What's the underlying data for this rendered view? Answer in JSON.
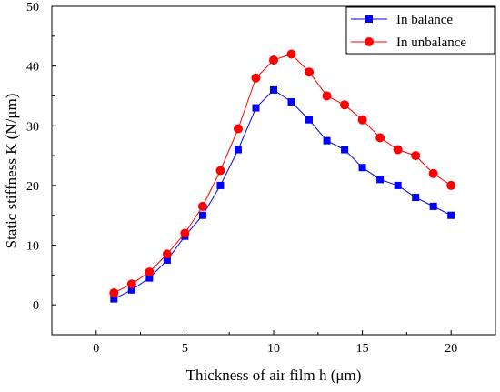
{
  "chart_data": {
    "type": "line",
    "xlabel": "Thickness of air film h (μm)",
    "ylabel": "Static stiffness K (N/μm)",
    "xlim": [
      -2.5,
      22.5
    ],
    "ylim": [
      -5,
      50
    ],
    "xticks": [
      0,
      5,
      10,
      15,
      20
    ],
    "yticks": [
      0,
      10,
      20,
      30,
      40,
      50
    ],
    "grid": false,
    "legend_position": "top-right",
    "x": [
      1,
      2,
      3,
      4,
      5,
      6,
      7,
      8,
      9,
      10,
      11,
      12,
      13,
      14,
      15,
      16,
      17,
      18,
      19,
      20
    ],
    "series": [
      {
        "name": "In balance",
        "color": "#0000ff",
        "marker": "square",
        "values": [
          1,
          2.5,
          4.5,
          7.5,
          11.5,
          15,
          20,
          26,
          33,
          36,
          34,
          31,
          27.5,
          26,
          23,
          21,
          20,
          18,
          16.5,
          15
        ]
      },
      {
        "name": "In unbalance",
        "color": "#ff0000",
        "marker": "circle",
        "values": [
          2,
          3.5,
          5.5,
          8.5,
          12,
          16.5,
          22.5,
          29.5,
          38,
          41,
          42,
          39,
          35,
          33.5,
          31,
          28,
          26,
          25,
          22,
          20
        ]
      }
    ]
  }
}
